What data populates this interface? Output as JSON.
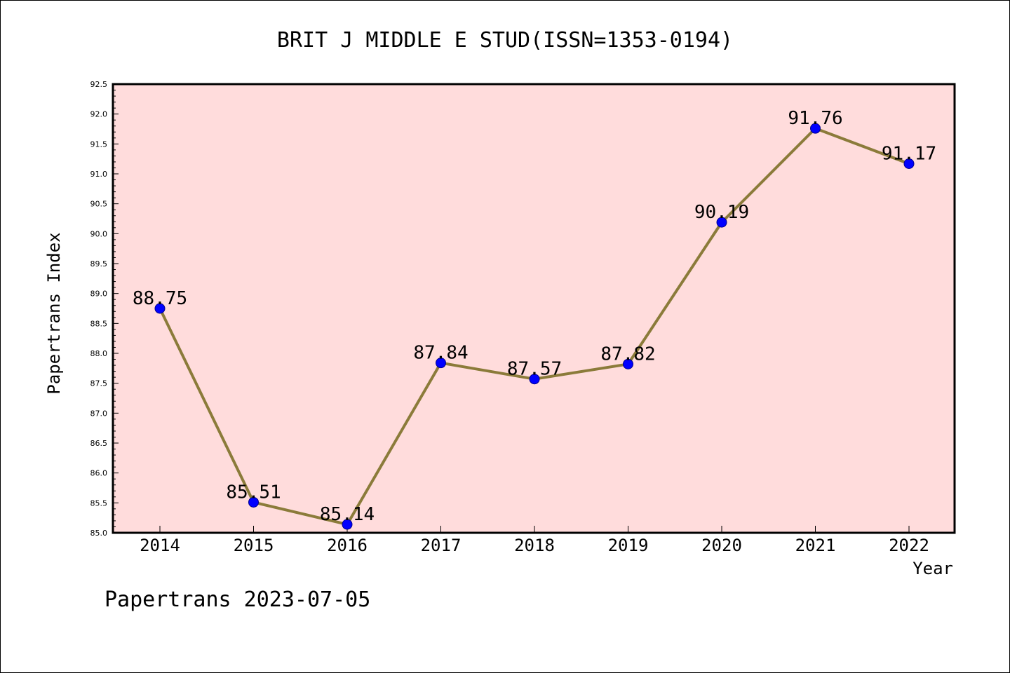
{
  "chart_data": {
    "type": "line",
    "title": "BRIT J MIDDLE E STUD(ISSN=1353-0194)",
    "xlabel": "Year",
    "ylabel": "Papertrans Index",
    "footer": "Papertrans 2023-07-05",
    "categories": [
      "2014",
      "2015",
      "2016",
      "2017",
      "2018",
      "2019",
      "2020",
      "2021",
      "2022"
    ],
    "series": [
      {
        "values": [
          88.75,
          85.51,
          85.14,
          87.84,
          87.57,
          87.82,
          90.19,
          91.76,
          91.17
        ],
        "labels": [
          "88.75",
          "85.51",
          "85.14",
          "87.84",
          "87.57",
          "87.82",
          "90.19",
          "91.76",
          "91.17"
        ]
      }
    ],
    "ylim": [
      85.0,
      92.5
    ],
    "yticks": [
      "85.0",
      "85.5",
      "86.0",
      "86.5",
      "87.0",
      "87.5",
      "88.0",
      "88.5",
      "89.0",
      "89.5",
      "90.0",
      "90.5",
      "91.0",
      "91.5",
      "92.0",
      "92.5"
    ],
    "colors": {
      "plot_background": "#ffdcdc",
      "line": "#8b7b3a",
      "marker_fill": "#0000ff",
      "marker_edge": "#00008b",
      "axis": "#000000"
    },
    "grid": false
  }
}
